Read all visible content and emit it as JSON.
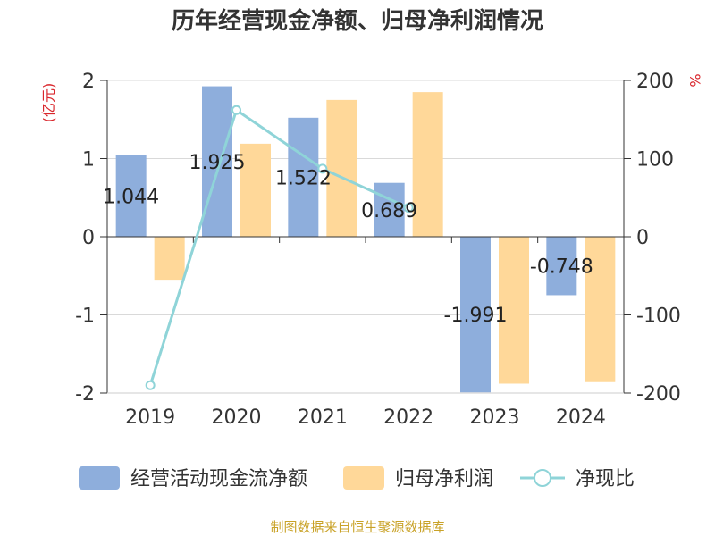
{
  "chart_data": {
    "type": "bar",
    "title": "历年经营现金净额、归母净利润情况",
    "categories": [
      "2019",
      "2020",
      "2021",
      "2022",
      "2023",
      "2024"
    ],
    "left_axis": {
      "unit": "(亿元)",
      "ylim": [
        -2,
        2
      ],
      "ticks": [
        "2",
        "1",
        "0",
        "-1",
        "-2"
      ],
      "tick_values": [
        2,
        1,
        0,
        -1,
        -2
      ]
    },
    "right_axis": {
      "unit": "%",
      "ylim": [
        -200,
        200
      ],
      "ticks": [
        "200",
        "100",
        "0",
        "-100",
        "-200"
      ],
      "tick_values": [
        200,
        100,
        0,
        -100,
        -200
      ]
    },
    "series": [
      {
        "name": "经营活动现金流净额",
        "type": "bar",
        "axis": "left",
        "color": "#8eaedc",
        "values": [
          1.044,
          1.925,
          1.522,
          0.689,
          -1.991,
          -0.748
        ],
        "labels": [
          "1.044",
          "1.925",
          "1.522",
          "0.689",
          "-1.991",
          "-0.748"
        ]
      },
      {
        "name": "归母净利润",
        "type": "bar",
        "axis": "left",
        "color": "#ffd899",
        "values": [
          -0.55,
          1.19,
          1.75,
          1.85,
          -1.88,
          -1.86
        ]
      },
      {
        "name": "净现比",
        "type": "line",
        "axis": "right",
        "color": "#8fd4d8",
        "values": [
          -190,
          162,
          87,
          37,
          null,
          null
        ]
      }
    ],
    "grid": true,
    "legend_position": "bottom"
  },
  "footer": {
    "source": "制图数据来自恒生聚源数据库"
  }
}
